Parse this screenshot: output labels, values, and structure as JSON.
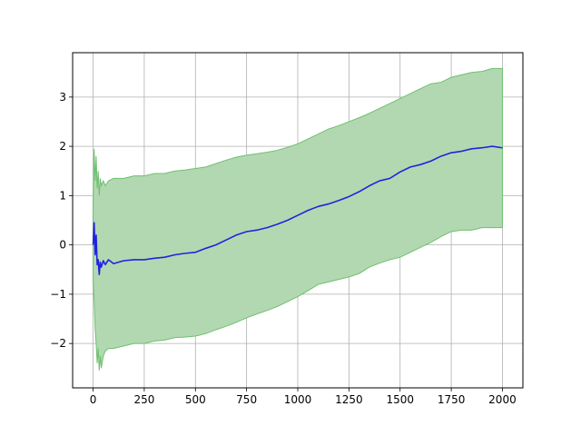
{
  "chart_data": {
    "type": "area",
    "title": "",
    "xlabel": "",
    "ylabel": "",
    "xlim": [
      -100,
      2100
    ],
    "ylim": [
      -2.9,
      3.9
    ],
    "grid": true,
    "x_ticks": [
      0,
      250,
      500,
      750,
      1000,
      1250,
      1500,
      1750,
      2000
    ],
    "x_tick_labels": [
      "0",
      "250",
      "500",
      "750",
      "1000",
      "1250",
      "1500",
      "1750",
      "2000"
    ],
    "y_ticks": [
      -2,
      -1,
      0,
      1,
      2,
      3
    ],
    "y_tick_labels": [
      "−2",
      "−1",
      "0",
      "1",
      "2",
      "3"
    ],
    "colors": {
      "mean_line": "#2222dd",
      "band_fill": "#b2d8b2",
      "band_edge": "#6fbf6f",
      "grid": "#b0b0b0"
    },
    "series": [
      {
        "kind": "line",
        "x": [
          0,
          5,
          10,
          15,
          20,
          25,
          30,
          35,
          40,
          50,
          60,
          75,
          100,
          150,
          200,
          250,
          300,
          350,
          400,
          450,
          500,
          550,
          600,
          650,
          700,
          750,
          800,
          850,
          900,
          950,
          1000,
          1050,
          1100,
          1150,
          1200,
          1250,
          1300,
          1350,
          1400,
          1450,
          1500,
          1550,
          1600,
          1650,
          1700,
          1750,
          1800,
          1850,
          1900,
          1950,
          2000
        ],
        "y": [
          0.0,
          0.45,
          -0.2,
          0.2,
          -0.4,
          -0.3,
          -0.6,
          -0.35,
          -0.45,
          -0.32,
          -0.4,
          -0.3,
          -0.38,
          -0.32,
          -0.3,
          -0.3,
          -0.27,
          -0.25,
          -0.2,
          -0.17,
          -0.15,
          -0.07,
          0.0,
          0.1,
          0.2,
          0.27,
          0.3,
          0.35,
          0.42,
          0.5,
          0.6,
          0.7,
          0.78,
          0.83,
          0.9,
          0.98,
          1.08,
          1.2,
          1.3,
          1.35,
          1.48,
          1.58,
          1.63,
          1.7,
          1.8,
          1.87,
          1.9,
          1.95,
          1.97,
          2.0,
          1.97
        ]
      },
      {
        "kind": "band",
        "x": [
          0,
          5,
          10,
          15,
          20,
          25,
          30,
          35,
          40,
          50,
          60,
          75,
          100,
          150,
          200,
          250,
          300,
          350,
          400,
          450,
          500,
          550,
          600,
          650,
          700,
          750,
          800,
          850,
          900,
          950,
          1000,
          1050,
          1100,
          1150,
          1200,
          1250,
          1300,
          1350,
          1400,
          1450,
          1500,
          1550,
          1600,
          1650,
          1700,
          1750,
          1800,
          1850,
          1900,
          1950,
          2000
        ],
        "upper": [
          0.7,
          1.95,
          1.3,
          1.8,
          1.15,
          1.5,
          1.0,
          1.35,
          1.2,
          1.3,
          1.2,
          1.3,
          1.35,
          1.35,
          1.4,
          1.4,
          1.45,
          1.45,
          1.5,
          1.52,
          1.55,
          1.58,
          1.65,
          1.72,
          1.78,
          1.82,
          1.85,
          1.88,
          1.92,
          1.98,
          2.05,
          2.15,
          2.25,
          2.35,
          2.42,
          2.5,
          2.58,
          2.67,
          2.77,
          2.87,
          2.97,
          3.07,
          3.17,
          3.27,
          3.3,
          3.4,
          3.45,
          3.5,
          3.52,
          3.58,
          3.58
        ],
        "lower": [
          -0.7,
          -1.1,
          -1.7,
          -2.0,
          -2.4,
          -2.1,
          -2.55,
          -2.25,
          -2.5,
          -2.25,
          -2.15,
          -2.1,
          -2.1,
          -2.05,
          -2.0,
          -2.0,
          -1.95,
          -1.93,
          -1.88,
          -1.87,
          -1.85,
          -1.8,
          -1.72,
          -1.65,
          -1.57,
          -1.48,
          -1.4,
          -1.33,
          -1.25,
          -1.15,
          -1.05,
          -0.93,
          -0.8,
          -0.75,
          -0.7,
          -0.65,
          -0.58,
          -0.45,
          -0.37,
          -0.3,
          -0.25,
          -0.15,
          -0.05,
          0.05,
          0.17,
          0.27,
          0.3,
          0.3,
          0.35,
          0.35,
          0.35
        ]
      }
    ]
  }
}
